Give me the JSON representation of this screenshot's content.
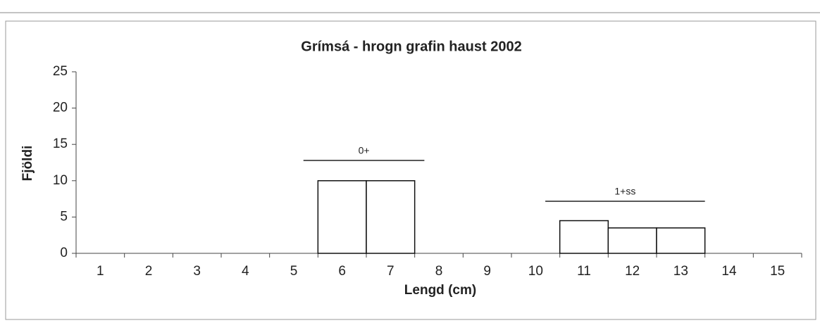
{
  "chart_data": {
    "type": "bar",
    "title": "Grímsá - hrogn grafin haust 2002",
    "x_label": "Lengd (cm)",
    "y_label": "Fjöldi",
    "categories": [
      "1",
      "2",
      "3",
      "4",
      "5",
      "6",
      "7",
      "8",
      "9",
      "10",
      "11",
      "12",
      "13",
      "14",
      "15"
    ],
    "values": [
      0,
      0,
      0,
      0,
      0,
      10,
      10,
      0,
      0,
      0,
      4.5,
      3.5,
      3.5,
      0,
      0
    ],
    "color": "#ffffff",
    "ylim": [
      0,
      25
    ],
    "yticks": [
      0,
      5,
      10,
      15,
      20,
      25
    ],
    "grid": false,
    "annotations": [
      {
        "text": "0+"
      },
      {
        "text": "1+ss"
      }
    ]
  }
}
